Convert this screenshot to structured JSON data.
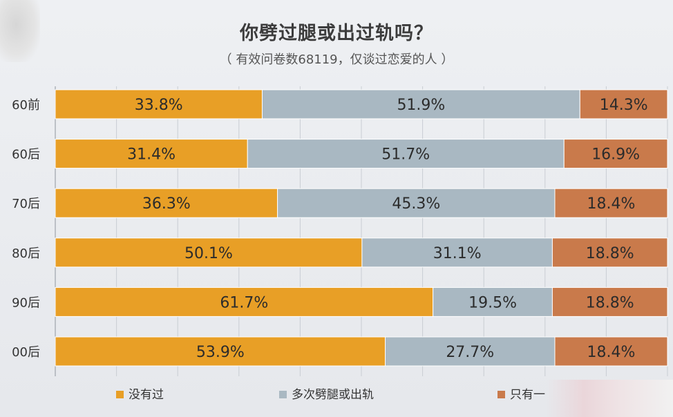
{
  "chart_data": {
    "type": "bar",
    "orientation": "horizontal",
    "stacked": true,
    "title": "你劈过腿或出过轨吗？",
    "subtitle": "（ 有效问卷数68119，仅谈过恋爱的人 ）",
    "categories": [
      "60前",
      "60后",
      "70后",
      "80后",
      "90后",
      "00后"
    ],
    "series": [
      {
        "name": "没有过",
        "color": "#e89f26",
        "values": [
          33.8,
          31.4,
          36.3,
          50.1,
          61.7,
          53.9
        ]
      },
      {
        "name": "多次劈腿或出轨",
        "color": "#a9b8c2",
        "values": [
          51.9,
          51.7,
          45.3,
          31.1,
          19.5,
          27.7
        ]
      },
      {
        "name": "只有一",
        "color": "#c97a4b",
        "values": [
          14.3,
          16.9,
          18.4,
          18.8,
          18.8,
          18.4
        ]
      }
    ],
    "value_suffix": "%",
    "legend_position": "bottom",
    "grid": true
  }
}
